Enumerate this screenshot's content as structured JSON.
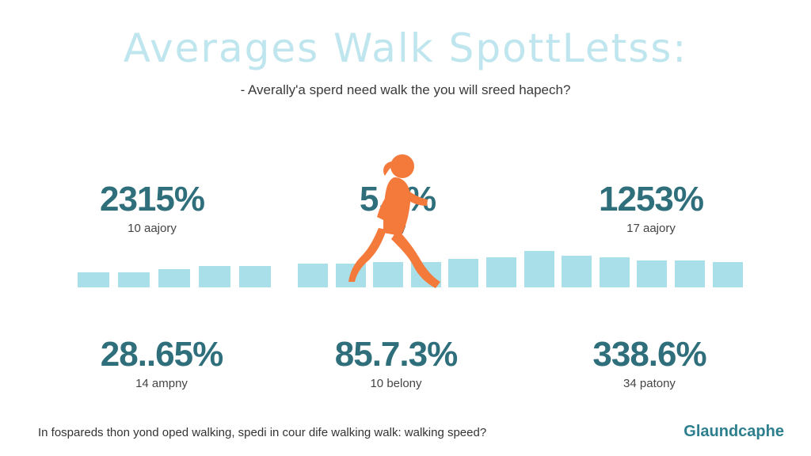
{
  "title": "Averages Walk SpottLetss:",
  "subtitle": "- Averally'a sperd need walk the you will sreed hapech?",
  "stats": [
    {
      "value": "2315%",
      "caption": "10 aajory"
    },
    {
      "value": "5.1%",
      "caption": "ory"
    },
    {
      "value": "1253%",
      "caption": "17 aajory"
    },
    {
      "value": "28..65%",
      "caption": "14 ampny"
    },
    {
      "value": "85.7.3%",
      "caption": "10 belony"
    },
    {
      "value": "338.6%",
      "caption": "34 patony"
    }
  ],
  "bar_levels": [
    0.5,
    0.5,
    0.6,
    0.7,
    0.7,
    0.8,
    0.8,
    0.85,
    0.85,
    0.95,
    1.0,
    1.2,
    1.05,
    1.0,
    0.9,
    0.9,
    0.85
  ],
  "footer_text": "In fospareds thon yond oped walking, spedi in cour dife walking walk: walking speed?",
  "brand": "Glaundcaphe",
  "colors": {
    "title": "#bfe6ee",
    "stat_value": "#2f6f7b",
    "bars": "#a8dfe8",
    "runner": "#f47a3c",
    "brand": "#2e7f8e"
  },
  "icons": {
    "runner": "running-person-icon"
  }
}
